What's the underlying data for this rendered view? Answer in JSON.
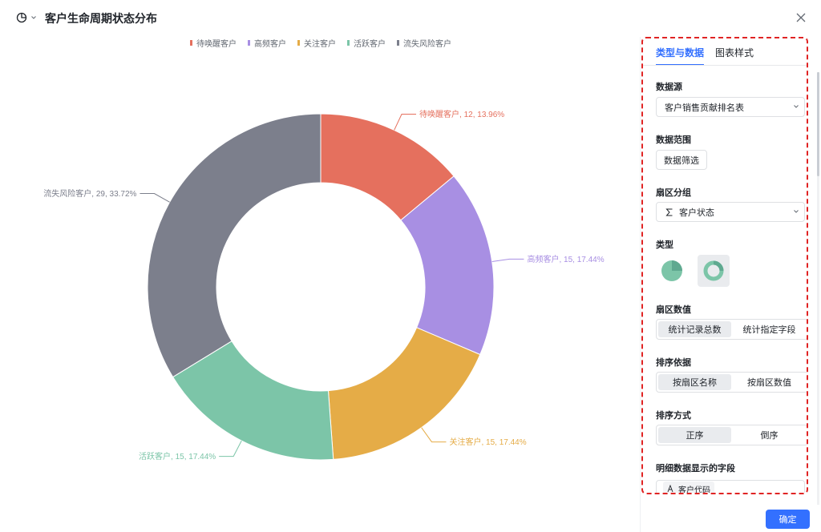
{
  "header": {
    "title": "客户生命周期状态分布",
    "chart_type_icon": "pie-chart-icon",
    "close_icon": "close-icon"
  },
  "chart_data": {
    "type": "pie",
    "variant": "donut",
    "series": [
      {
        "name": "待唤醒客户",
        "value": 12,
        "percent": "13.96%",
        "color": "#e5705e"
      },
      {
        "name": "高频客户",
        "value": 15,
        "percent": "17.44%",
        "color": "#a88fe3"
      },
      {
        "name": "关注客户",
        "value": 15,
        "percent": "17.44%",
        "color": "#e5ac47"
      },
      {
        "name": "活跃客户",
        "value": 15,
        "percent": "17.44%",
        "color": "#7cc5a8"
      },
      {
        "name": "流失风险客户",
        "value": 29,
        "percent": "33.72%",
        "color": "#7c7f8c"
      }
    ],
    "legend_position": "top-center",
    "labels": [
      "待唤醒客户, 12, 13.96%",
      "高频客户, 15, 17.44%",
      "关注客户, 15, 17.44%",
      "活跃客户, 15, 17.44%",
      "流失风险客户, 29, 33.72%"
    ]
  },
  "panel": {
    "tabs": [
      {
        "label": "类型与数据",
        "active": true
      },
      {
        "label": "图表样式",
        "active": false
      }
    ],
    "datasource": {
      "label": "数据源",
      "value": "客户销售贡献排名表"
    },
    "range": {
      "label": "数据范围",
      "button": "数据筛选"
    },
    "group": {
      "label": "扇区分组",
      "value": "客户状态",
      "icon": "sigma-icon"
    },
    "type": {
      "label": "类型",
      "options": [
        "pie-icon",
        "donut-icon"
      ],
      "selected": "donut-icon"
    },
    "value": {
      "label": "扇区数值",
      "options": [
        "统计记录总数",
        "统计指定字段"
      ],
      "selected": "统计记录总数"
    },
    "sort_by": {
      "label": "排序依据",
      "options": [
        "按扇区名称",
        "按扇区数值"
      ],
      "selected": "按扇区名称"
    },
    "sort_order": {
      "label": "排序方式",
      "options": [
        "正序",
        "倒序"
      ],
      "selected": "正序"
    },
    "detail_fields": {
      "label": "明细数据显示的字段",
      "chip": "客户代码",
      "chip_icon": "text-field-icon"
    }
  },
  "footer": {
    "confirm": "确定"
  },
  "colors": {
    "accent": "#3370ff",
    "highlight_border": "#e02424"
  }
}
